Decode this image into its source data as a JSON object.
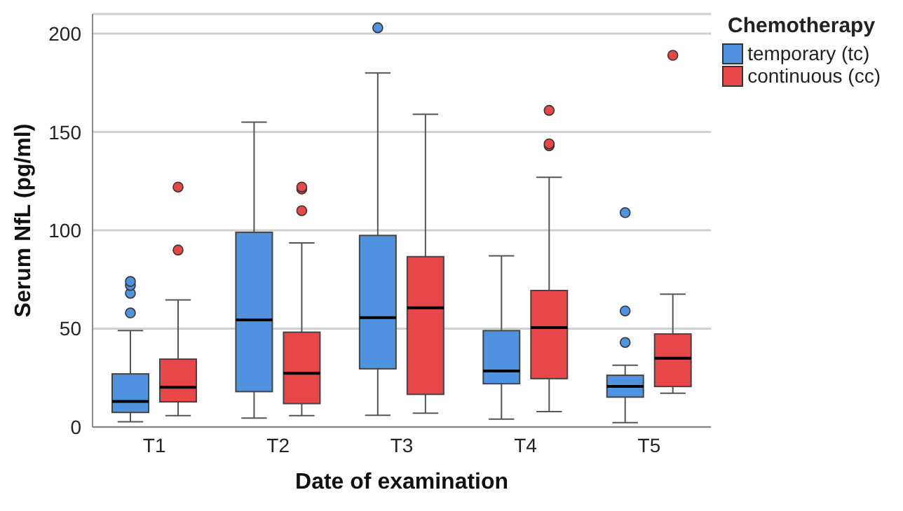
{
  "chart_data": {
    "type": "box",
    "xlabel": "Date of examination",
    "ylabel": "Serum NfL (pg/ml)",
    "legend_title": "Chemotherapy",
    "categories": [
      "T1",
      "T2",
      "T3",
      "T4",
      "T5"
    ],
    "ylim": [
      0,
      210
    ],
    "yticks": [
      0,
      50,
      100,
      150,
      200
    ],
    "grid": "y",
    "legend": "top right",
    "series": [
      {
        "name": "temporary (tc)",
        "color": "#4f93e0",
        "boxes": [
          {
            "low": 2.7,
            "q1": 7.4,
            "median": 13,
            "q3": 27,
            "high": 49,
            "outliers": [
              58,
              68,
              72,
              74
            ]
          },
          {
            "low": 4.5,
            "q1": 18,
            "median": 54.5,
            "q3": 99,
            "high": 155
          },
          {
            "low": 6,
            "q1": 29.6,
            "median": 55.6,
            "q3": 97.4,
            "high": 180,
            "outliers": [
              203
            ]
          },
          {
            "low": 4,
            "q1": 22,
            "median": 28.5,
            "q3": 49,
            "high": 87
          },
          {
            "low": 2.2,
            "q1": 15.2,
            "median": 20.6,
            "q3": 26.3,
            "high": 31.4,
            "outliers": [
              43,
              59,
              109
            ]
          }
        ]
      },
      {
        "name": "continuous (cc)",
        "color": "#e8474a",
        "boxes": [
          {
            "low": 5.8,
            "q1": 12.8,
            "median": 20.2,
            "q3": 34.5,
            "high": 64.6,
            "outliers": [
              90,
              122
            ]
          },
          {
            "low": 5.8,
            "q1": 11.9,
            "median": 27.3,
            "q3": 48.2,
            "high": 93.6,
            "outliers": [
              110,
              121,
              122
            ]
          },
          {
            "low": 7,
            "q1": 16.6,
            "median": 60.6,
            "q3": 86.6,
            "high": 159
          },
          {
            "low": 7.8,
            "q1": 24.6,
            "median": 50.5,
            "q3": 69.4,
            "high": 127,
            "outliers": [
              143,
              144,
              161
            ]
          },
          {
            "low": 17.2,
            "q1": 20.6,
            "median": 35,
            "q3": 47.3,
            "high": 67.5,
            "outliers": [
              189
            ]
          }
        ]
      }
    ]
  }
}
